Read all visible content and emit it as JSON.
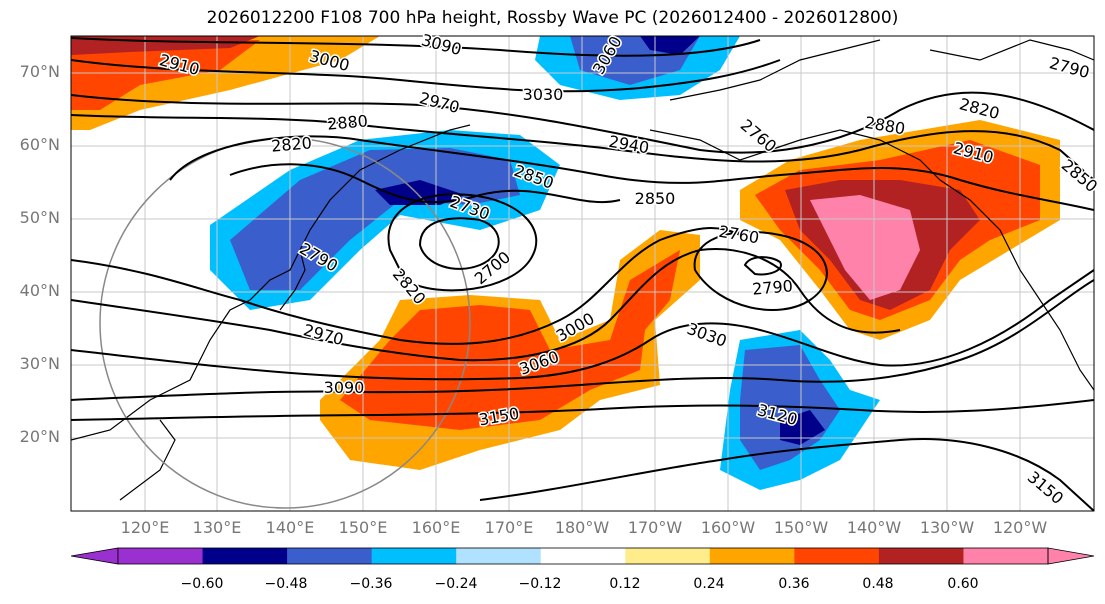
{
  "title": "2026012200 F108 700 hPa height, Rossby Wave PC (2026012400 - 2026012800)",
  "lat_labels": [
    "70°N",
    "60°N",
    "50°N",
    "40°N",
    "30°N",
    "20°N"
  ],
  "lon_labels": [
    "120°E",
    "130°E",
    "140°E",
    "150°E",
    "160°E",
    "170°E",
    "180°W",
    "170°W",
    "160°W",
    "150°W",
    "140°W",
    "130°W",
    "120°W"
  ],
  "colorbar": {
    "ticks": [
      "−0.60",
      "−0.48",
      "−0.36",
      "−0.24",
      "−0.12",
      "0.12",
      "0.24",
      "0.36",
      "0.48",
      "0.60"
    ],
    "colors": [
      "#9b30d0",
      "#00008b",
      "#3a5fcd",
      "#00bfff",
      "#b0e2ff",
      "#ffffff",
      "#ffec8b",
      "#ffa500",
      "#ff4500",
      "#b22222",
      "#ff82ab",
      "#ff82ab"
    ]
  },
  "contour_labels": [
    "2910",
    "3000",
    "3090",
    "3060",
    "3030",
    "2970",
    "2880",
    "2820",
    "2940",
    "2850",
    "2730",
    "2700",
    "2760",
    "2790",
    "2820",
    "3000",
    "3060",
    "3150",
    "3090",
    "2970",
    "2790",
    "2760",
    "3030",
    "3120",
    "2850",
    "2910",
    "2880",
    "2820",
    "2790",
    "3150",
    "2850"
  ]
}
